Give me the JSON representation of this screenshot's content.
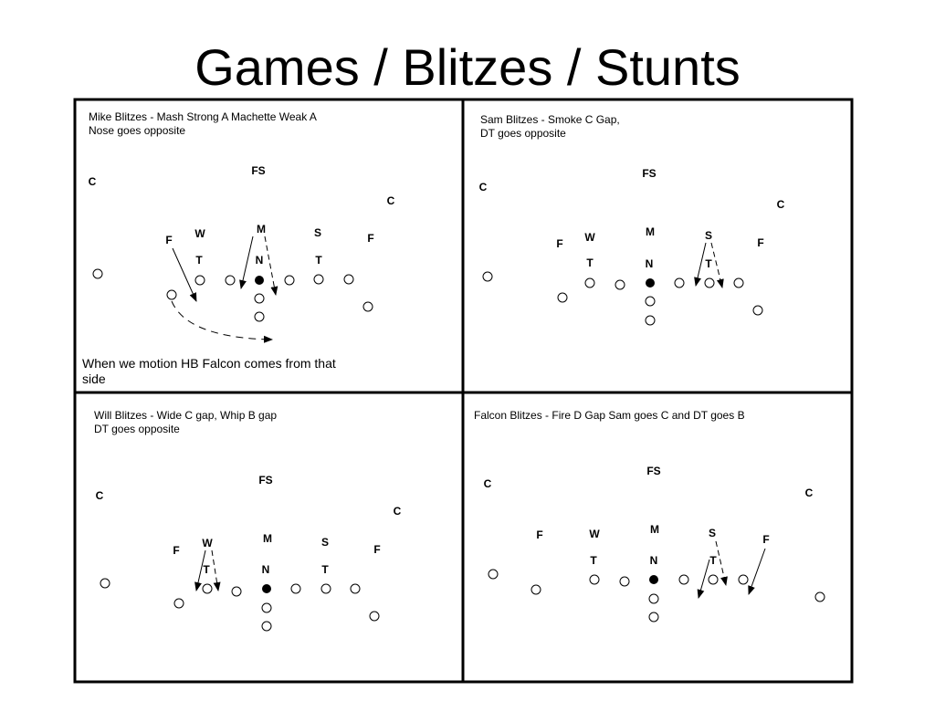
{
  "title": "Games / Blitzes / Stunts",
  "panels": [
    {
      "caption_line1": "Mike Blitzes - Mash Strong A Machette Weak A",
      "caption_line2": "Nose goes opposite",
      "note_line1": "When we motion HB Falcon comes from that",
      "note_line2": "side",
      "defenders": [
        "FS",
        "C",
        "C",
        "F",
        "W",
        "M",
        "S",
        "F",
        "T",
        "N",
        "T"
      ]
    },
    {
      "caption_line1": "Sam Blitzes - Smoke C Gap,",
      "caption_line2": "DT goes opposite",
      "defenders": [
        "FS",
        "C",
        "C",
        "F",
        "W",
        "M",
        "S",
        "F",
        "T",
        "N",
        "T"
      ]
    },
    {
      "caption_line1": "Will Blitzes - Wide C gap, Whip B gap",
      "caption_line2": "DT goes opposite",
      "defenders": [
        "FS",
        "C",
        "C",
        "F",
        "W",
        "M",
        "S",
        "F",
        "T",
        "N",
        "T"
      ]
    },
    {
      "caption_line1": "Falcon Blitzes - Fire  D Gap Sam goes C and DT goes B",
      "defenders": [
        "FS",
        "C",
        "C",
        "F",
        "W",
        "M",
        "S",
        "F",
        "T",
        "N",
        "T"
      ]
    }
  ]
}
